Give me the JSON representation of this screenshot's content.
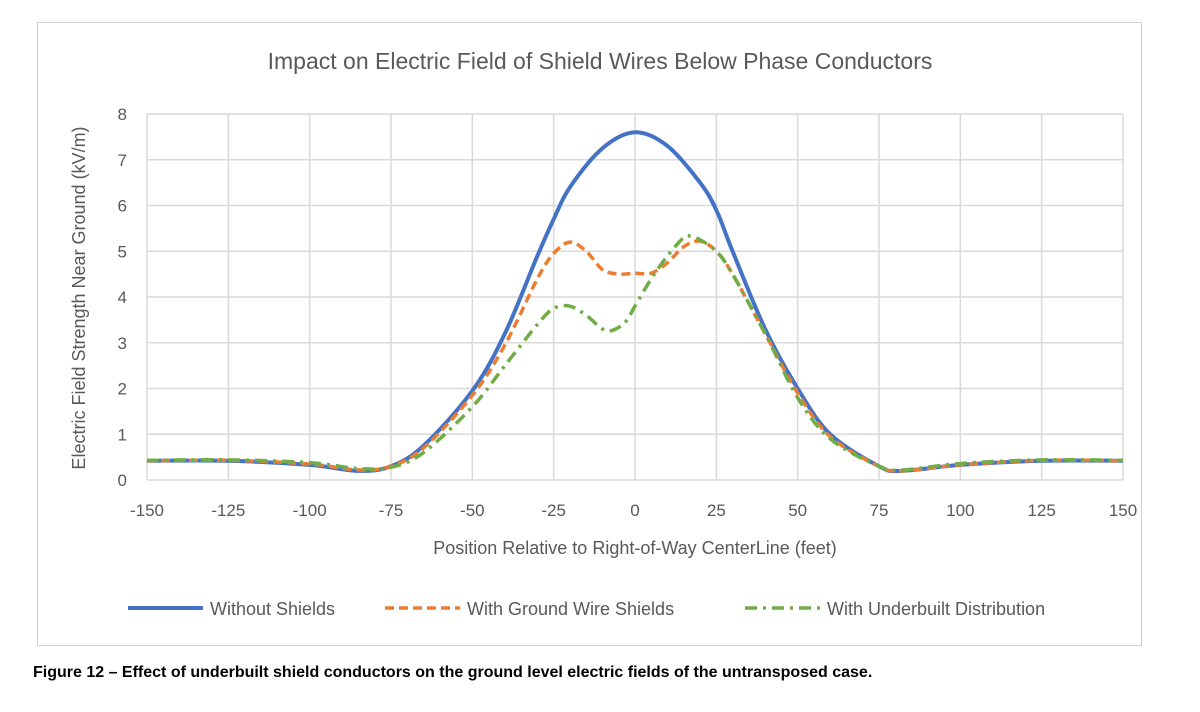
{
  "chart_data": {
    "type": "line",
    "title": "Impact on Electric Field of Shield Wires Below Phase Conductors",
    "xlabel": "Position Relative to Right-of-Way CenterLine (feet)",
    "ylabel": "Electric Field Strength Near Ground (kV/m)",
    "xlim": [
      -150,
      150
    ],
    "ylim": [
      0,
      8
    ],
    "xticks": [
      -150,
      -125,
      -100,
      -75,
      -50,
      -25,
      0,
      25,
      50,
      75,
      100,
      125,
      150
    ],
    "yticks": [
      0,
      1,
      2,
      3,
      4,
      5,
      6,
      7,
      8
    ],
    "grid": true,
    "legend": "bottom",
    "series": [
      {
        "name": "Without Shields",
        "color": "#4472c4",
        "style": "solid",
        "x": [
          -150,
          -125,
          -100,
          -85,
          -75,
          -65,
          -50,
          -40,
          -30,
          -25,
          -20,
          -10,
          0,
          10,
          20,
          25,
          30,
          40,
          50,
          60,
          75,
          82,
          100,
          125,
          150
        ],
        "y": [
          0.42,
          0.42,
          0.33,
          0.2,
          0.3,
          0.75,
          1.95,
          3.2,
          4.9,
          5.7,
          6.4,
          7.25,
          7.6,
          7.3,
          6.5,
          5.9,
          5.0,
          3.3,
          2.0,
          1.0,
          0.3,
          0.2,
          0.33,
          0.42,
          0.42
        ]
      },
      {
        "name": "With Ground Wire Shields",
        "color": "#ed7d31",
        "style": "dashed",
        "x": [
          -150,
          -125,
          -100,
          -85,
          -75,
          -65,
          -50,
          -40,
          -30,
          -25,
          -20,
          -15,
          -10,
          -5,
          0,
          5,
          10,
          15,
          20,
          25,
          30,
          40,
          50,
          60,
          75,
          82,
          100,
          125,
          150
        ],
        "y": [
          0.42,
          0.43,
          0.35,
          0.22,
          0.3,
          0.7,
          1.85,
          2.95,
          4.4,
          4.95,
          5.2,
          5.0,
          4.6,
          4.5,
          4.52,
          4.52,
          4.75,
          5.1,
          5.22,
          5.0,
          4.5,
          3.2,
          1.9,
          0.95,
          0.3,
          0.2,
          0.33,
          0.43,
          0.42
        ]
      },
      {
        "name": "With Underbuilt Distribution",
        "color": "#70ad47",
        "style": "dashdot",
        "x": [
          -150,
          -125,
          -100,
          -85,
          -75,
          -65,
          -50,
          -40,
          -30,
          -25,
          -20,
          -15,
          -10,
          -7,
          -3,
          0,
          5,
          10,
          15,
          17,
          20,
          25,
          30,
          40,
          50,
          60,
          75,
          82,
          100,
          125,
          150
        ],
        "y": [
          0.43,
          0.44,
          0.38,
          0.25,
          0.28,
          0.6,
          1.6,
          2.5,
          3.4,
          3.75,
          3.8,
          3.6,
          3.3,
          3.27,
          3.45,
          3.8,
          4.4,
          4.9,
          5.3,
          5.33,
          5.25,
          5.0,
          4.5,
          3.2,
          1.8,
          0.9,
          0.3,
          0.22,
          0.36,
          0.44,
          0.43
        ]
      }
    ]
  },
  "caption": "Figure 12 – Effect of underbuilt shield conductors on the ground level electric fields of the untransposed case."
}
